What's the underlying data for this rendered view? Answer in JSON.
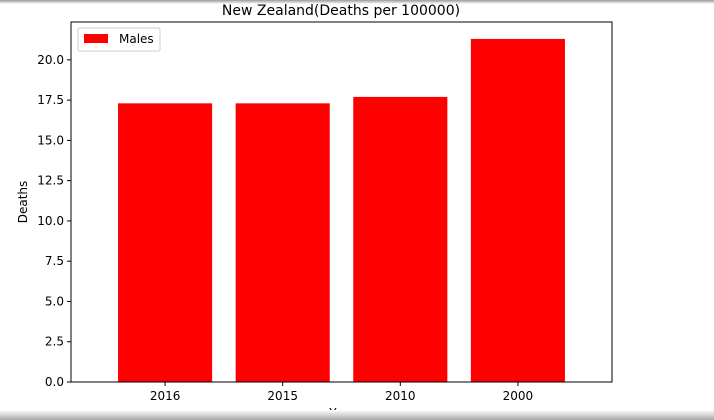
{
  "chart_data": {
    "type": "bar",
    "title": "New Zealand(Deaths per 100000)",
    "xlabel": "Year",
    "ylabel": "Deaths",
    "categories": [
      "2016",
      "2015",
      "2010",
      "2000"
    ],
    "series": [
      {
        "name": "Males",
        "color": "#ff0000",
        "values": [
          17.3,
          17.3,
          17.7,
          21.3
        ]
      }
    ],
    "ylim": [
      0,
      22.35
    ],
    "yticks": [
      "0.0",
      "2.5",
      "5.0",
      "7.5",
      "10.0",
      "12.5",
      "15.0",
      "17.5",
      "20.0"
    ],
    "legend_position": "top-left",
    "grid": false
  }
}
